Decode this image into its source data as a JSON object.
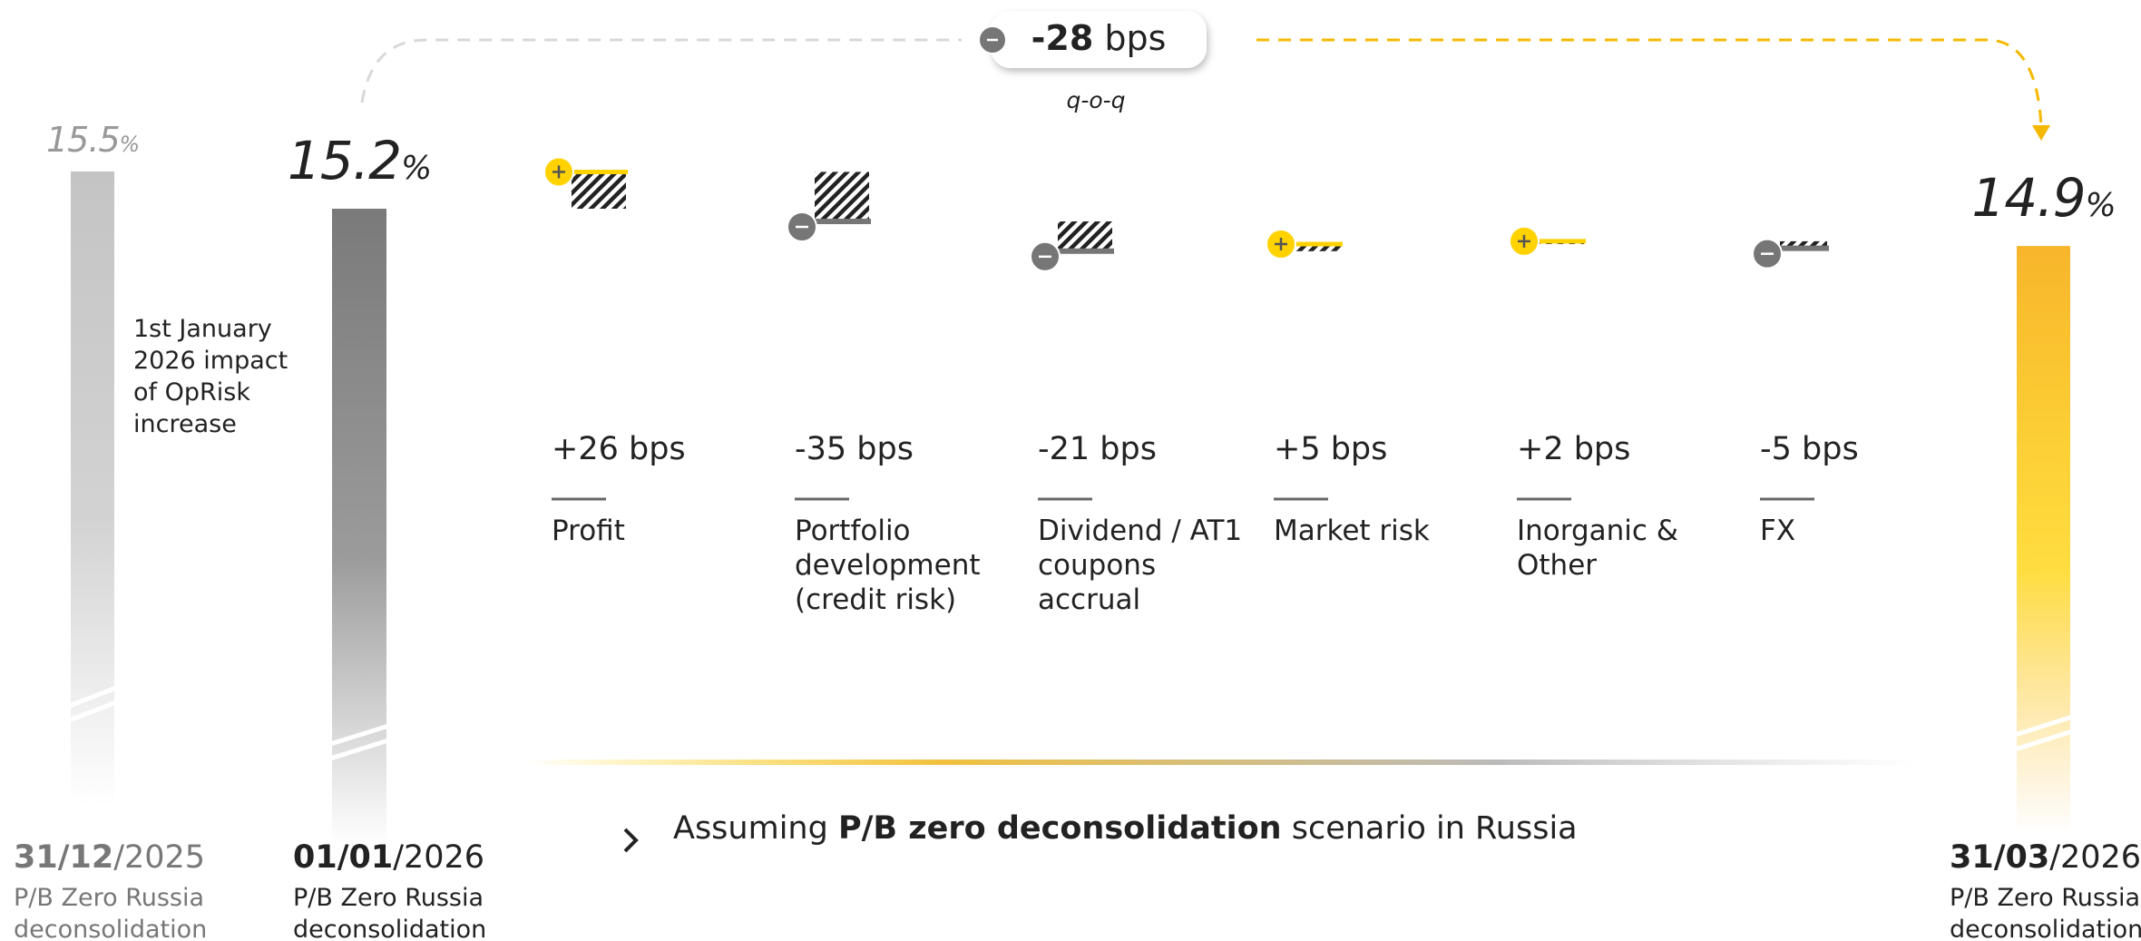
{
  "chart_data": {
    "type": "waterfall",
    "total": {
      "value": -28,
      "label": "-28 bps"
    },
    "total_note": "q-o-q",
    "bars": [
      {
        "value": 15.5,
        "label": "15.5%",
        "date": "31/12/2025",
        "caption": "P/B Zero Russia deconsolidation",
        "color": "#c4c4c4"
      },
      {
        "value": 15.2,
        "label": "15.2%",
        "date": "01/01/2026",
        "caption": "P/B Zero Russia deconsolidation",
        "color": "#7a7a7a"
      },
      {
        "value": 14.9,
        "label": "14.9%",
        "date": "31/03/2026",
        "caption": "P/B Zero Russia deconsolidation",
        "color": "#f7b52c"
      }
    ],
    "categories": [
      "Profit",
      "Portfolio development (credit risk)",
      "Dividend / AT1 coupons accrual",
      "Market risk",
      "Inorganic & Other",
      "FX"
    ],
    "values": [
      26,
      -35,
      -21,
      5,
      2,
      -5
    ],
    "value_labels": [
      "+26 bps",
      "-35 bps",
      "-21 bps",
      "+5 bps",
      "+2 bps",
      "-5 bps"
    ],
    "colors": {
      "increase": "#ffd200",
      "decrease": "#767676"
    },
    "annotation": "1st January 2026 impact of OpRisk increase",
    "footnote": [
      "Assuming ",
      "P/B zero deconsolidation",
      " scenario in Russia"
    ]
  }
}
